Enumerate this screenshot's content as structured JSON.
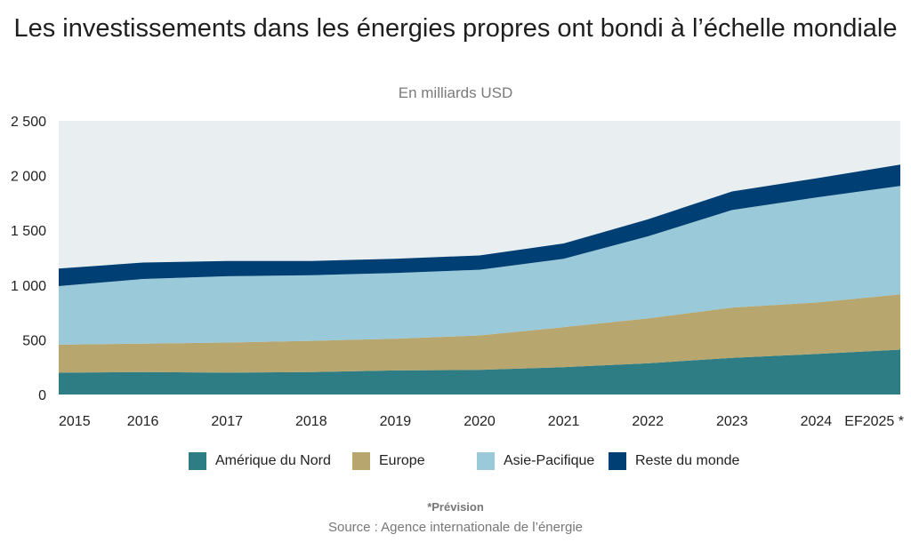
{
  "chart_data": {
    "type": "area",
    "stacked": true,
    "title": "Les investissements dans les énergies propres ont bondi à l’échelle mondiale",
    "subtitle": "En milliards USD",
    "categories": [
      "2015",
      "2016",
      "2017",
      "2018",
      "2019",
      "2020",
      "2021",
      "2022",
      "2023",
      "2024",
      "EF2025 *"
    ],
    "ylim": [
      0,
      2500
    ],
    "yticks": [
      0,
      500,
      1000,
      1500,
      2000,
      2500
    ],
    "ytick_labels": [
      "0",
      "500",
      "1 000",
      "1 500",
      "2 000",
      "2 500"
    ],
    "grid": false,
    "legend_position": "bottom",
    "series": [
      {
        "name": "Amérique du Nord",
        "color": "#2e7d84",
        "values": [
          200,
          205,
          200,
          205,
          220,
          225,
          250,
          285,
          335,
          370,
          410
        ]
      },
      {
        "name": "Europe",
        "color": "#b7a76f",
        "values": [
          255,
          260,
          275,
          285,
          290,
          315,
          365,
          410,
          460,
          470,
          505
        ]
      },
      {
        "name": "Asie-Pacifique",
        "color": "#9acad9",
        "values": [
          535,
          590,
          605,
          600,
          600,
          600,
          625,
          750,
          890,
          960,
          990
        ]
      },
      {
        "name": "Reste du monde",
        "color": "#003f73",
        "values": [
          160,
          150,
          140,
          130,
          130,
          130,
          140,
          155,
          170,
          175,
          195
        ]
      }
    ],
    "note": "*Prévision",
    "source": "Source : Agence internationale de l’énergie"
  },
  "colors": {
    "plot_background": "#e9eef1"
  }
}
